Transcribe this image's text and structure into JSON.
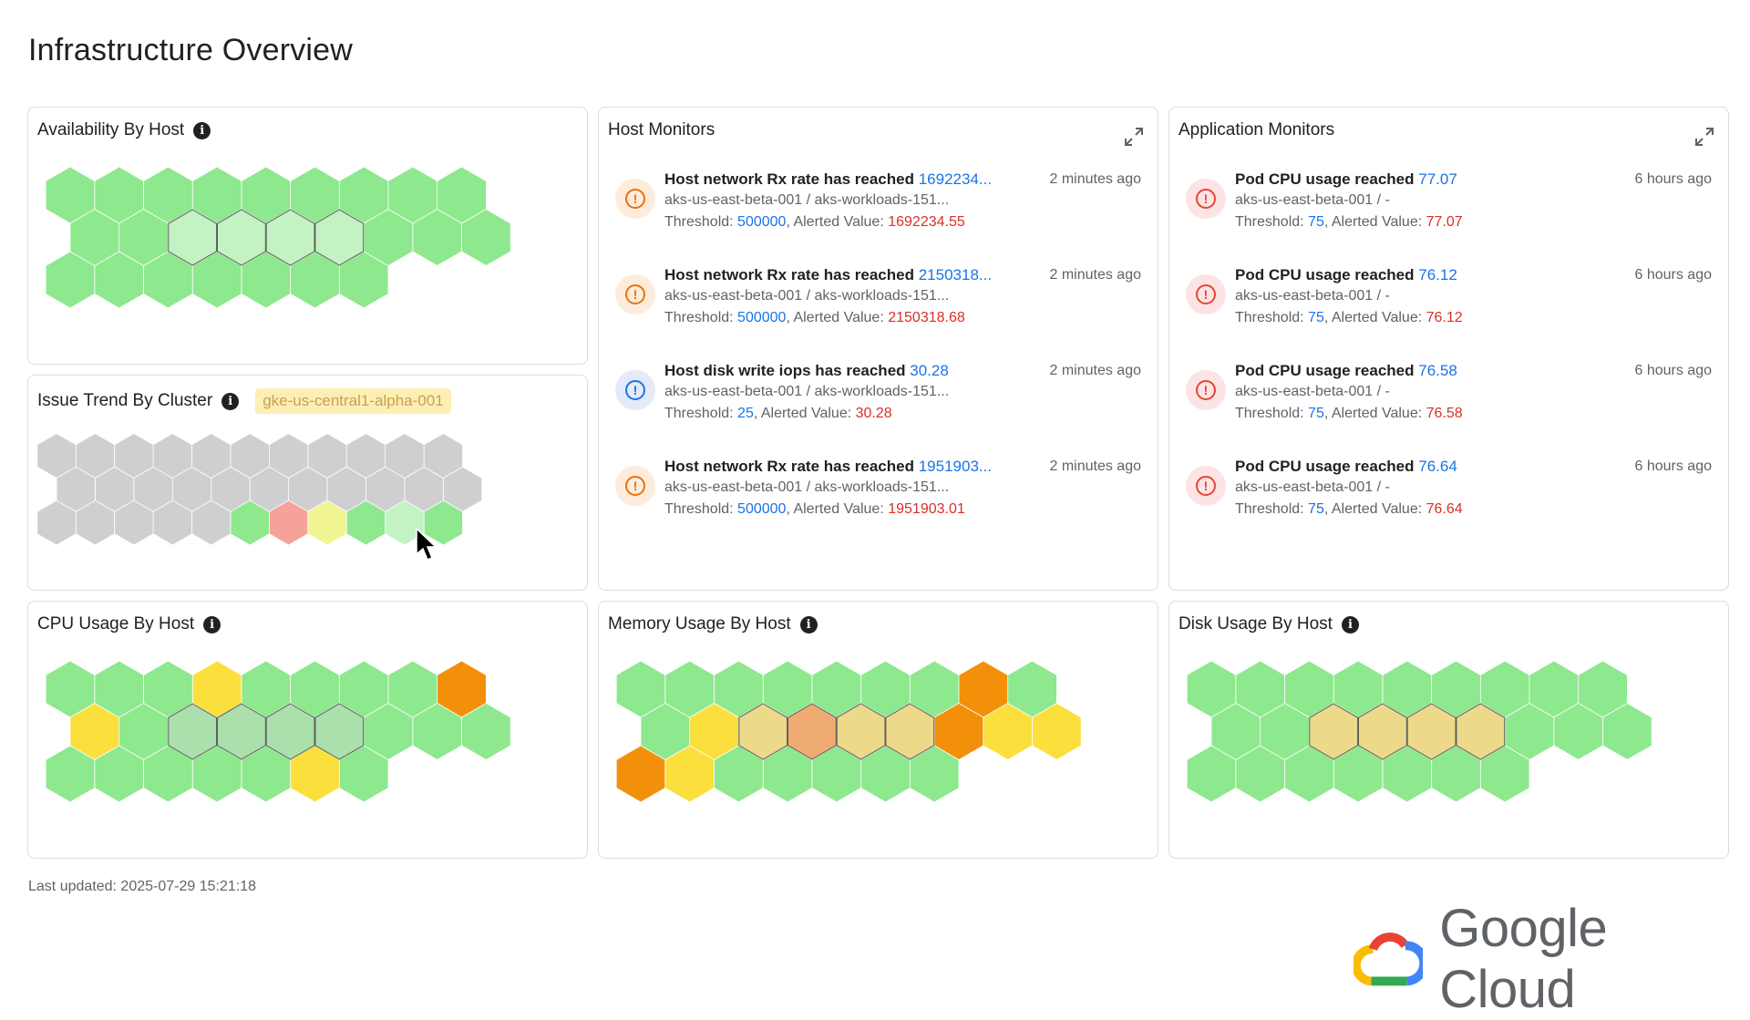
{
  "page": {
    "title": "Infrastructure Overview",
    "last_updated": "Last updated: 2025-07-29 15:21:18"
  },
  "colors": {
    "green": "#8ee88e",
    "green_light": "#c3f2c3",
    "green_dim": "#abdfab",
    "gray": "#cfcfd1",
    "red_light": "#f5a29a",
    "yellow_light": "#f0f592",
    "yellow": "#fbdf3c",
    "orange": "#f3900a",
    "amber_light": "#ecd98a",
    "salmon": "#f0ab73"
  },
  "panels": {
    "availability": {
      "title": "Availability By Host",
      "info_icon": "i"
    },
    "issue_trend": {
      "title": "Issue Trend By Cluster",
      "info_icon": "i",
      "cluster": "gke-us-central1-alpha-001"
    },
    "cpu": {
      "title": "CPU Usage By Host",
      "info_icon": "i"
    },
    "memory": {
      "title": "Memory Usage By Host",
      "info_icon": "i"
    },
    "disk": {
      "title": "Disk Usage By Host",
      "info_icon": "i"
    },
    "host_monitors": {
      "title": "Host Monitors",
      "alerts": [
        {
          "severity": "warning",
          "icon": "!",
          "title": "Host network Rx rate has reached ",
          "value": "1692234...",
          "source": "aks-us-east-beta-001 / aks-workloads-151...",
          "threshold_label": "Threshold: ",
          "threshold": "500000",
          "alerted_label": ", Alerted Value: ",
          "alerted": "1692234.55",
          "time": "2 minutes ago"
        },
        {
          "severity": "warning",
          "icon": "!",
          "title": "Host network Rx rate has reached ",
          "value": "2150318...",
          "source": "aks-us-east-beta-001 / aks-workloads-151...",
          "threshold_label": "Threshold: ",
          "threshold": "500000",
          "alerted_label": ", Alerted Value: ",
          "alerted": "2150318.68",
          "time": "2 minutes ago"
        },
        {
          "severity": "info",
          "icon": "!",
          "title": "Host disk write iops has reached ",
          "value": "30.28",
          "source": "aks-us-east-beta-001 / aks-workloads-151...",
          "threshold_label": "Threshold: ",
          "threshold": "25",
          "alerted_label": ", Alerted Value: ",
          "alerted": "30.28",
          "time": "2 minutes ago"
        },
        {
          "severity": "warning",
          "icon": "!",
          "title": "Host network Rx rate has reached ",
          "value": "1951903...",
          "source": "aks-us-east-beta-001 / aks-workloads-151...",
          "threshold_label": "Threshold: ",
          "threshold": "500000",
          "alerted_label": ", Alerted Value: ",
          "alerted": "1951903.01",
          "time": "2 minutes ago"
        }
      ]
    },
    "app_monitors": {
      "title": "Application Monitors",
      "alerts": [
        {
          "severity": "error",
          "icon": "!",
          "title": "Pod CPU usage reached ",
          "value": "77.07",
          "source": "aks-us-east-beta-001 / -",
          "threshold_label": "Threshold: ",
          "threshold": "75",
          "alerted_label": ", Alerted Value: ",
          "alerted": "77.07",
          "time": "6 hours ago"
        },
        {
          "severity": "error",
          "icon": "!",
          "title": "Pod CPU usage reached ",
          "value": "76.12",
          "source": "aks-us-east-beta-001 / -",
          "threshold_label": "Threshold: ",
          "threshold": "75",
          "alerted_label": ", Alerted Value: ",
          "alerted": "76.12",
          "time": "6 hours ago"
        },
        {
          "severity": "error",
          "icon": "!",
          "title": "Pod CPU usage reached ",
          "value": "76.58",
          "source": "aks-us-east-beta-001 / -",
          "threshold_label": "Threshold: ",
          "threshold": "75",
          "alerted_label": ", Alerted Value: ",
          "alerted": "76.58",
          "time": "6 hours ago"
        },
        {
          "severity": "error",
          "icon": "!",
          "title": "Pod CPU usage reached ",
          "value": "76.64",
          "source": "aks-us-east-beta-001 / -",
          "threshold_label": "Threshold: ",
          "threshold": "75",
          "alerted_label": ", Alerted Value: ",
          "alerted": "76.64",
          "time": "6 hours ago"
        }
      ]
    }
  },
  "hexmaps": {
    "availability": {
      "rows": [
        [
          "G",
          "G",
          "G",
          "G",
          "G",
          "G",
          "G",
          "G",
          "G"
        ],
        [
          "G",
          "G",
          "L",
          "L",
          "L",
          "L",
          "G",
          "G",
          "G"
        ],
        [
          "G",
          "G",
          "G",
          "G",
          "G",
          "G",
          "G"
        ]
      ]
    },
    "issue_trend": {
      "rows": [
        [
          "X",
          "X",
          "X",
          "X",
          "X",
          "X",
          "X",
          "X",
          "X",
          "X",
          "X"
        ],
        [
          "X",
          "X",
          "X",
          "X",
          "X",
          "X",
          "X",
          "X",
          "X",
          "X",
          "X"
        ],
        [
          "X",
          "X",
          "X",
          "X",
          "X",
          "G",
          "R",
          "Y",
          "G",
          "L",
          "G"
        ]
      ]
    },
    "cpu": {
      "rows": [
        [
          "G",
          "G",
          "G",
          "Y",
          "G",
          "G",
          "G",
          "G",
          "O"
        ],
        [
          "Y",
          "G",
          "D",
          "D",
          "D",
          "D",
          "G",
          "G",
          "G"
        ],
        [
          "G",
          "G",
          "G",
          "G",
          "G",
          "Y",
          "G"
        ]
      ]
    },
    "memory": {
      "rows": [
        [
          "G",
          "G",
          "G",
          "G",
          "G",
          "G",
          "G",
          "O",
          "G"
        ],
        [
          "G",
          "Y",
          "A",
          "S",
          "A",
          "A",
          "O",
          "Y",
          "Y"
        ],
        [
          "O",
          "Y",
          "G",
          "G",
          "G",
          "G",
          "G"
        ]
      ]
    },
    "disk": {
      "rows": [
        [
          "G",
          "G",
          "G",
          "G",
          "G",
          "G",
          "G",
          "G",
          "G"
        ],
        [
          "G",
          "G",
          "A",
          "A",
          "A",
          "A",
          "G",
          "G",
          "G"
        ],
        [
          "G",
          "G",
          "G",
          "G",
          "G",
          "G",
          "G"
        ]
      ]
    }
  },
  "logo": {
    "text": "Google Cloud"
  }
}
